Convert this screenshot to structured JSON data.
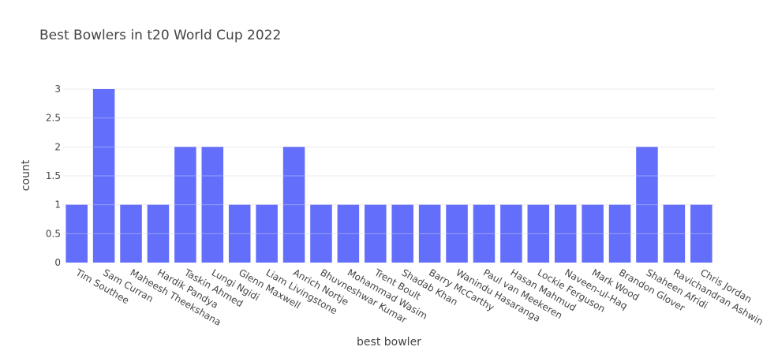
{
  "chart_data": {
    "type": "bar",
    "title": "Best Bowlers in t20 World Cup 2022",
    "xlabel": "best bowler",
    "ylabel": "count",
    "ylim": [
      0,
      3.15
    ],
    "yticks": [
      "0",
      "0.5",
      "1",
      "1.5",
      "2",
      "2.5",
      "3"
    ],
    "ytick_values": [
      0,
      0.5,
      1,
      1.5,
      2,
      2.5,
      3
    ],
    "grid": true,
    "bar_color": "#636efa",
    "categories": [
      "Tim Southee",
      "Sam Curran",
      "Maheesh Theekshana",
      "Hardik Pandya",
      "Taskin Ahmed",
      "Lungi Ngidi",
      "Glenn Maxwell",
      "Liam Livingstone",
      "Anrich Nortje",
      "Bhuvneshwar Kumar",
      "Mohammad Wasim",
      "Trent Boult",
      "Shadab Khan",
      "Barry McCarthy",
      "Wanindu Hasaranga",
      "Paul van Meekeren",
      "Hasan Mahmud",
      "Lockie Ferguson",
      "Naveen-ul-Haq",
      "Mark Wood",
      "Brandon Glover",
      "Shaheen Afridi",
      "Ravichandran Ashwin",
      "Chris Jordan"
    ],
    "values": [
      1,
      3,
      1,
      1,
      2,
      2,
      1,
      1,
      2,
      1,
      1,
      1,
      1,
      1,
      1,
      1,
      1,
      1,
      1,
      1,
      1,
      2,
      1,
      1
    ]
  }
}
